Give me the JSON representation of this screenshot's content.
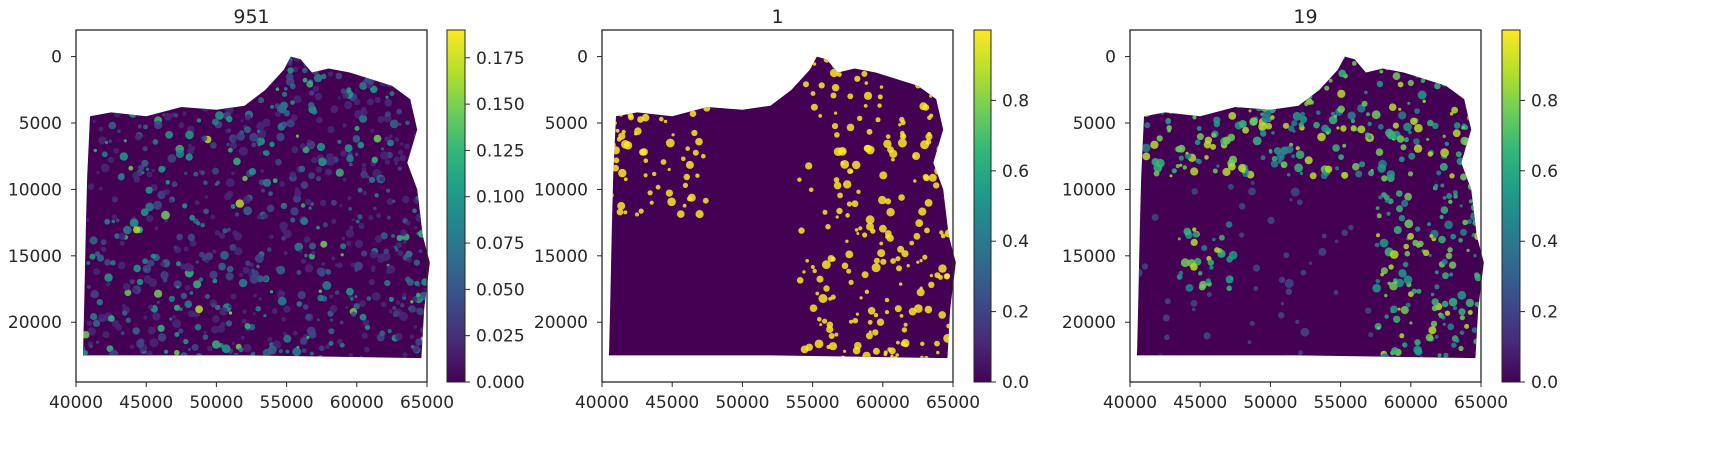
{
  "chart_data": [
    {
      "type": "heatmap",
      "title": "951",
      "xlabel": "",
      "ylabel": "",
      "xlim": [
        40000,
        65000
      ],
      "ylim": [
        24500,
        -2000
      ],
      "x_ticks": [
        "40000",
        "45000",
        "50000",
        "55000",
        "60000",
        "65000"
      ],
      "y_ticks": [
        "0",
        "5000",
        "10000",
        "15000",
        "20000"
      ],
      "colorbar": {
        "colormap": "viridis",
        "range": [
          0.0,
          0.19
        ],
        "ticks": [
          "0.000",
          "0.025",
          "0.050",
          "0.075",
          "0.100",
          "0.125",
          "0.150",
          "0.175"
        ]
      },
      "grid": false
    },
    {
      "type": "heatmap",
      "title": "1",
      "xlabel": "",
      "ylabel": "",
      "xlim": [
        40000,
        65000
      ],
      "ylim": [
        24500,
        -2000
      ],
      "x_ticks": [
        "40000",
        "45000",
        "50000",
        "55000",
        "60000",
        "65000"
      ],
      "y_ticks": [
        "0",
        "5000",
        "10000",
        "15000",
        "20000"
      ],
      "colorbar": {
        "colormap": "viridis",
        "range": [
          0.0,
          1.0
        ],
        "ticks": [
          "0.0",
          "0.2",
          "0.4",
          "0.6",
          "0.8"
        ]
      },
      "grid": false
    },
    {
      "type": "heatmap",
      "title": "19",
      "xlabel": "",
      "ylabel": "",
      "xlim": [
        40000,
        65000
      ],
      "ylim": [
        24500,
        -2000
      ],
      "x_ticks": [
        "40000",
        "45000",
        "50000",
        "55000",
        "60000",
        "65000"
      ],
      "y_ticks": [
        "0",
        "5000",
        "10000",
        "15000",
        "20000"
      ],
      "colorbar": {
        "colormap": "viridis",
        "range": [
          0.0,
          1.0
        ],
        "ticks": [
          "0.0",
          "0.2",
          "0.4",
          "0.6",
          "0.8"
        ]
      },
      "grid": false
    }
  ],
  "colors": {
    "viridis": [
      "#440154",
      "#482878",
      "#3e4989",
      "#31688e",
      "#26828e",
      "#1f9e89",
      "#35b779",
      "#6ece58",
      "#b5de2b",
      "#fde725"
    ],
    "background": "#440154",
    "axis": "#262626"
  }
}
